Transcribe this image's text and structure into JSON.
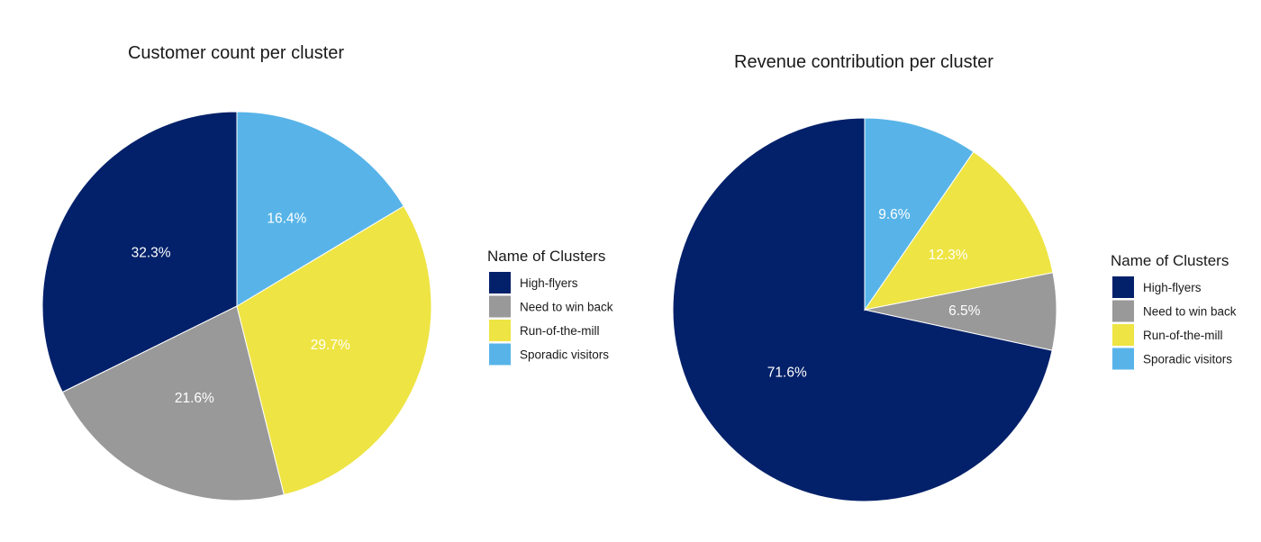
{
  "chart_data": [
    {
      "type": "pie",
      "title": "Customer count per cluster",
      "legend_title": "Name of Clusters",
      "legend_position": "right",
      "categories": [
        "High-flyers",
        "Need to win back",
        "Run-of-the-mill",
        "Sporadic visitors"
      ],
      "values": [
        32.3,
        21.6,
        29.7,
        16.4
      ],
      "labels": [
        "32.3%",
        "21.6%",
        "29.7%",
        "16.4%"
      ],
      "colors": [
        "#03216a",
        "#999999",
        "#eee443",
        "#58b4e8"
      ]
    },
    {
      "type": "pie",
      "title": "Revenue contribution per cluster",
      "legend_title": "Name of Clusters",
      "legend_position": "right",
      "categories": [
        "High-flyers",
        "Need to win back",
        "Run-of-the-mill",
        "Sporadic visitors"
      ],
      "values": [
        71.6,
        6.5,
        12.3,
        9.6
      ],
      "labels": [
        "71.6%",
        "6.5%",
        "12.3%",
        "9.6%"
      ],
      "colors": [
        "#03216a",
        "#999999",
        "#eee443",
        "#58b4e8"
      ]
    }
  ]
}
